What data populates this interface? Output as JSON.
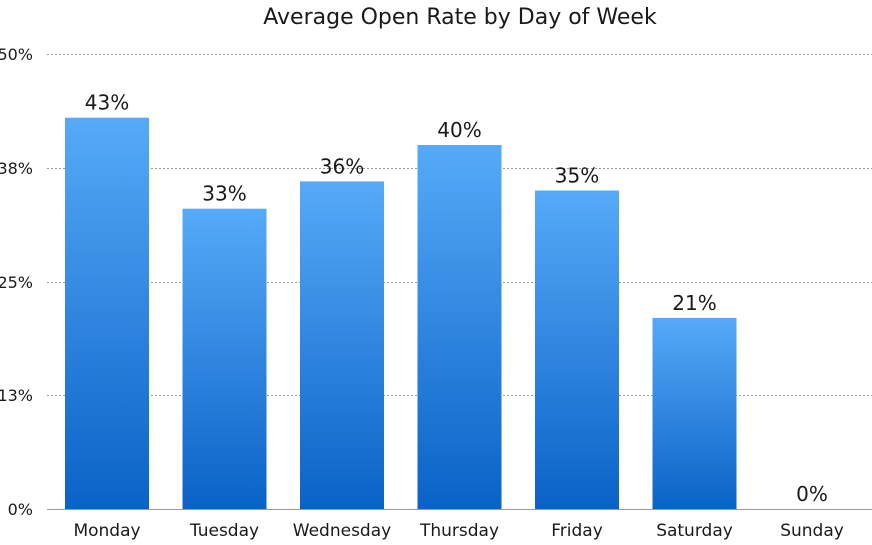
{
  "chart_data": {
    "type": "bar",
    "title": "Average Open Rate by Day of Week",
    "xlabel": "",
    "ylabel": "",
    "categories": [
      "Monday",
      "Tuesday",
      "Wednesday",
      "Thursday",
      "Friday",
      "Saturday",
      "Sunday"
    ],
    "values": [
      43,
      33,
      36,
      40,
      35,
      21,
      0
    ],
    "data_labels": [
      "43%",
      "33%",
      "36%",
      "40%",
      "35%",
      "21%",
      "0%"
    ],
    "ylim": [
      0,
      50
    ],
    "yticks": [
      0,
      12.5,
      25,
      37.5,
      50
    ],
    "ytick_labels": [
      "0%",
      "13%",
      "25%",
      "38%",
      "50%"
    ],
    "grid": true,
    "legend": "none",
    "colors": {
      "bar_top": "#56aaf8",
      "bar_bottom": "#0a62c6"
    }
  }
}
